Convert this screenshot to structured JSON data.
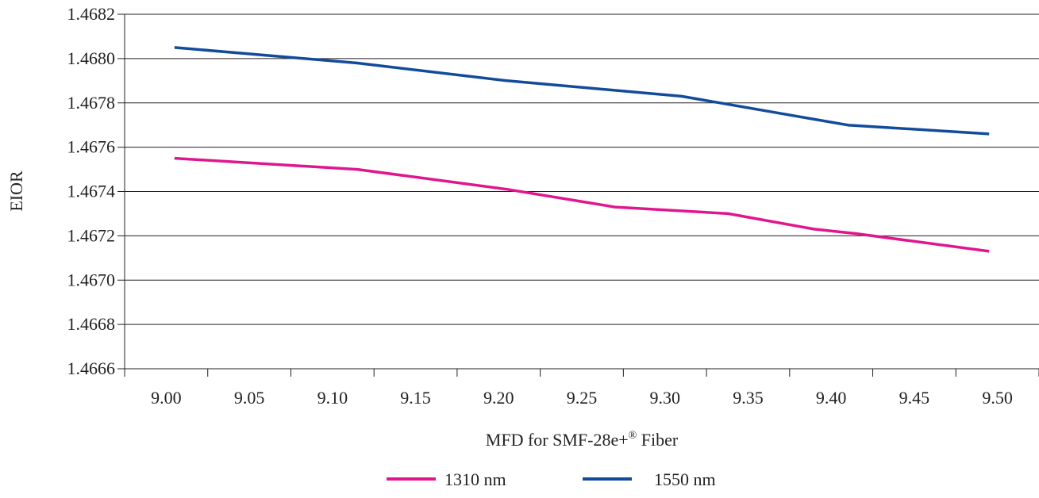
{
  "chart_data": {
    "type": "line",
    "title": "",
    "xlabel": "MFD for SMF-28e+",
    "xlabel_sup": "®",
    "xlabel_suffix": " Fiber",
    "ylabel": "EIOR",
    "xlim": [
      8.975,
      9.525
    ],
    "ylim": [
      1.4666,
      1.4682
    ],
    "x_ticks": [
      "9.00",
      "9.05",
      "9.10",
      "9.15",
      "9.20",
      "9.25",
      "9.30",
      "9.35",
      "9.40",
      "9.45",
      "9.50"
    ],
    "y_ticks": [
      "1.4666",
      "1.4668",
      "1.4670",
      "1.4672",
      "1.4674",
      "1.4676",
      "1.4678",
      "1.4680",
      "1.4682"
    ],
    "grid": "horizontal",
    "legend_position": "bottom",
    "series": [
      {
        "name": "1310 nm",
        "color": "#e0168f",
        "points": [
          [
            9.005,
            1.46755
          ],
          [
            9.115,
            1.4675
          ],
          [
            9.205,
            1.46741
          ],
          [
            9.27,
            1.46733
          ],
          [
            9.338,
            1.4673
          ],
          [
            9.39,
            1.46723
          ],
          [
            9.415,
            1.46721
          ],
          [
            9.495,
            1.46713
          ]
        ]
      },
      {
        "name": "1550 nm",
        "color": "#134b9b",
        "points": [
          [
            9.005,
            1.46805
          ],
          [
            9.115,
            1.46798
          ],
          [
            9.205,
            1.4679
          ],
          [
            9.31,
            1.46783
          ],
          [
            9.41,
            1.4677
          ],
          [
            9.495,
            1.46766
          ]
        ]
      }
    ]
  }
}
